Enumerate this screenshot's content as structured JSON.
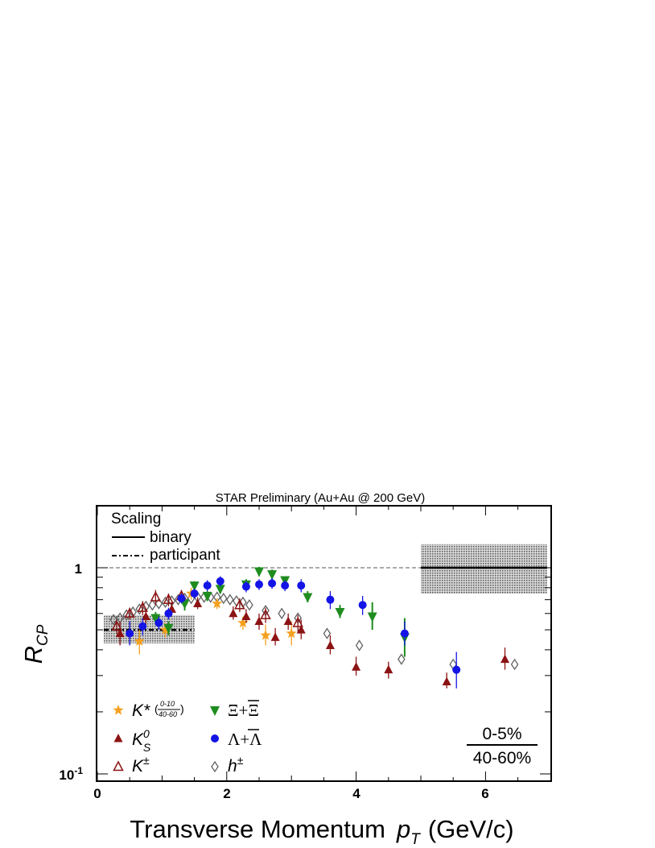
{
  "chart_data": {
    "type": "scatter",
    "title": "STAR Preliminary (Au+Au @ 200 GeV)",
    "xlabel": "Transverse Momentum",
    "xlabel_var": "p",
    "xlabel_sub": "T",
    "xlabel_unit": "(GeV/c)",
    "ylabel": "R",
    "ylabel_sub": "CP",
    "xlim": [
      -0.1,
      7.0
    ],
    "ylim": [
      0.088,
      1.9
    ],
    "y_scale": "log",
    "x_ticks": [
      "0",
      "2",
      "4",
      "6"
    ],
    "y_ticks": [
      {
        "base": "1",
        "exp": "",
        "value": 1
      },
      {
        "base": "10",
        "exp": "-1",
        "value": 0.1
      }
    ],
    "reference_line": {
      "y": 1,
      "style": "dashed"
    },
    "scaling_legend": {
      "title": "Scaling",
      "items": [
        {
          "label": "binary",
          "style": "solid"
        },
        {
          "label": "participant",
          "style": "dashdot"
        }
      ]
    },
    "ratio_label": {
      "numerator": "0-5%",
      "denominator": "40-60%"
    },
    "scaling_bands": [
      {
        "name": "participant",
        "x": [
          0.1,
          1.5
        ],
        "y_center": 0.5,
        "y_low": 0.43,
        "y_high": 0.59
      },
      {
        "name": "binary",
        "x": [
          5.0,
          6.95
        ],
        "y_center": 1.0,
        "y_low": 0.75,
        "y_high": 1.3
      }
    ],
    "series": [
      {
        "name": "K*",
        "legend_main": "K*",
        "legend_frac_top": "0-10",
        "legend_frac_bottom": "40-60",
        "marker": "star",
        "color": "#f5a01e",
        "points": [
          {
            "x": 0.65,
            "y": 0.44,
            "lo": 0.38,
            "hi": 0.5
          },
          {
            "x": 1.05,
            "y": 0.5,
            "lo": 0.46,
            "hi": 0.54
          },
          {
            "x": 1.45,
            "y": 0.75,
            "lo": 0.7,
            "hi": 0.8
          },
          {
            "x": 1.85,
            "y": 0.67,
            "lo": 0.63,
            "hi": 0.71
          },
          {
            "x": 2.25,
            "y": 0.54,
            "lo": 0.5,
            "hi": 0.58
          },
          {
            "x": 2.6,
            "y": 0.47,
            "lo": 0.42,
            "hi": 0.53
          },
          {
            "x": 3.0,
            "y": 0.48,
            "lo": 0.42,
            "hi": 0.55
          }
        ]
      },
      {
        "name": "K0S",
        "legend_main": "K",
        "legend_sup": "0",
        "legend_sub": "S",
        "marker": "triangle-up",
        "color": "#8b1313",
        "points": [
          {
            "x": 0.35,
            "y": 0.48,
            "lo": 0.42,
            "hi": 0.55
          },
          {
            "x": 0.75,
            "y": 0.58,
            "lo": 0.53,
            "hi": 0.63
          },
          {
            "x": 1.15,
            "y": 0.63,
            "lo": 0.59,
            "hi": 0.68
          },
          {
            "x": 1.55,
            "y": 0.67,
            "lo": 0.63,
            "hi": 0.72
          },
          {
            "x": 2.1,
            "y": 0.6,
            "lo": 0.56,
            "hi": 0.65
          },
          {
            "x": 2.3,
            "y": 0.58,
            "lo": 0.54,
            "hi": 0.63
          },
          {
            "x": 2.5,
            "y": 0.55,
            "lo": 0.5,
            "hi": 0.6
          },
          {
            "x": 2.75,
            "y": 0.46,
            "lo": 0.42,
            "hi": 0.51
          },
          {
            "x": 2.95,
            "y": 0.55,
            "lo": 0.5,
            "hi": 0.6
          },
          {
            "x": 3.15,
            "y": 0.5,
            "lo": 0.45,
            "hi": 0.56
          },
          {
            "x": 3.6,
            "y": 0.42,
            "lo": 0.38,
            "hi": 0.47
          },
          {
            "x": 4.0,
            "y": 0.33,
            "lo": 0.3,
            "hi": 0.37
          },
          {
            "x": 4.5,
            "y": 0.32,
            "lo": 0.29,
            "hi": 0.35
          },
          {
            "x": 5.4,
            "y": 0.28,
            "lo": 0.26,
            "hi": 0.31
          },
          {
            "x": 6.3,
            "y": 0.36,
            "lo": 0.32,
            "hi": 0.41
          }
        ]
      },
      {
        "name": "K±",
        "legend_main": "K",
        "legend_sup": "±",
        "marker": "triangle-up-open",
        "color": "#8b1313",
        "points": [
          {
            "x": 0.3,
            "y": 0.52,
            "lo": 0.48,
            "hi": 0.56
          },
          {
            "x": 0.5,
            "y": 0.6,
            "lo": 0.56,
            "hi": 0.64
          },
          {
            "x": 0.7,
            "y": 0.64,
            "lo": 0.59,
            "hi": 0.69
          },
          {
            "x": 0.9,
            "y": 0.72,
            "lo": 0.66,
            "hi": 0.78
          },
          {
            "x": 1.1,
            "y": 0.7,
            "lo": 0.65,
            "hi": 0.75
          },
          {
            "x": 1.3,
            "y": 0.73,
            "lo": 0.68,
            "hi": 0.78
          },
          {
            "x": 2.2,
            "y": 0.66,
            "lo": 0.61,
            "hi": 0.71
          },
          {
            "x": 2.6,
            "y": 0.59,
            "lo": 0.54,
            "hi": 0.64
          },
          {
            "x": 3.1,
            "y": 0.54,
            "lo": 0.49,
            "hi": 0.59
          }
        ]
      },
      {
        "name": "Ξ+Ξbar",
        "legend_main": "Ξ+Ξ",
        "marker": "triangle-down",
        "color": "#1f8c1f",
        "points": [
          {
            "x": 0.9,
            "y": 0.57,
            "lo": 0.53,
            "hi": 0.61
          },
          {
            "x": 1.1,
            "y": 0.51,
            "lo": 0.47,
            "hi": 0.55
          },
          {
            "x": 1.35,
            "y": 0.67,
            "lo": 0.62,
            "hi": 0.72
          },
          {
            "x": 1.5,
            "y": 0.82,
            "lo": 0.78,
            "hi": 0.86
          },
          {
            "x": 1.7,
            "y": 0.73,
            "lo": 0.69,
            "hi": 0.77
          },
          {
            "x": 1.9,
            "y": 0.79,
            "lo": 0.75,
            "hi": 0.83
          },
          {
            "x": 2.3,
            "y": 0.83,
            "lo": 0.79,
            "hi": 0.88
          },
          {
            "x": 2.5,
            "y": 0.96,
            "lo": 0.91,
            "hi": 1.01
          },
          {
            "x": 2.7,
            "y": 0.93,
            "lo": 0.88,
            "hi": 0.98
          },
          {
            "x": 2.9,
            "y": 0.87,
            "lo": 0.83,
            "hi": 0.91
          },
          {
            "x": 3.25,
            "y": 0.72,
            "lo": 0.68,
            "hi": 0.77
          },
          {
            "x": 3.75,
            "y": 0.61,
            "lo": 0.57,
            "hi": 0.66
          },
          {
            "x": 4.25,
            "y": 0.58,
            "lo": 0.5,
            "hi": 0.68
          },
          {
            "x": 4.75,
            "y": 0.46,
            "lo": 0.37,
            "hi": 0.57
          }
        ]
      },
      {
        "name": "Λ+Λbar",
        "legend_main": "Λ+Λ",
        "marker": "circle",
        "color": "#1414e6",
        "points": [
          {
            "x": 0.5,
            "y": 0.48,
            "lo": 0.42,
            "hi": 0.55
          },
          {
            "x": 0.7,
            "y": 0.52,
            "lo": 0.47,
            "hi": 0.57
          },
          {
            "x": 0.95,
            "y": 0.54,
            "lo": 0.5,
            "hi": 0.58
          },
          {
            "x": 1.1,
            "y": 0.6,
            "lo": 0.56,
            "hi": 0.64
          },
          {
            "x": 1.3,
            "y": 0.71,
            "lo": 0.67,
            "hi": 0.75
          },
          {
            "x": 1.5,
            "y": 0.75,
            "lo": 0.71,
            "hi": 0.79
          },
          {
            "x": 1.7,
            "y": 0.82,
            "lo": 0.77,
            "hi": 0.87
          },
          {
            "x": 1.9,
            "y": 0.86,
            "lo": 0.81,
            "hi": 0.91
          },
          {
            "x": 2.3,
            "y": 0.81,
            "lo": 0.76,
            "hi": 0.86
          },
          {
            "x": 2.5,
            "y": 0.83,
            "lo": 0.78,
            "hi": 0.88
          },
          {
            "x": 2.7,
            "y": 0.84,
            "lo": 0.79,
            "hi": 0.89
          },
          {
            "x": 2.9,
            "y": 0.82,
            "lo": 0.77,
            "hi": 0.87
          },
          {
            "x": 3.15,
            "y": 0.82,
            "lo": 0.76,
            "hi": 0.88
          },
          {
            "x": 3.6,
            "y": 0.7,
            "lo": 0.63,
            "hi": 0.77
          },
          {
            "x": 4.1,
            "y": 0.66,
            "lo": 0.59,
            "hi": 0.73
          },
          {
            "x": 4.75,
            "y": 0.48,
            "lo": 0.42,
            "hi": 0.55
          },
          {
            "x": 5.55,
            "y": 0.32,
            "lo": 0.26,
            "hi": 0.39
          }
        ]
      },
      {
        "name": "h±",
        "legend_main": "h",
        "legend_sup": "±",
        "marker": "diamond-open",
        "color": "#606060",
        "points": [
          {
            "x": 0.25,
            "y": 0.56
          },
          {
            "x": 0.35,
            "y": 0.57
          },
          {
            "x": 0.45,
            "y": 0.59
          },
          {
            "x": 0.55,
            "y": 0.61
          },
          {
            "x": 0.65,
            "y": 0.63
          },
          {
            "x": 0.75,
            "y": 0.65
          },
          {
            "x": 0.85,
            "y": 0.66
          },
          {
            "x": 0.95,
            "y": 0.67
          },
          {
            "x": 1.05,
            "y": 0.68
          },
          {
            "x": 1.15,
            "y": 0.69
          },
          {
            "x": 1.25,
            "y": 0.7
          },
          {
            "x": 1.35,
            "y": 0.71
          },
          {
            "x": 1.45,
            "y": 0.71
          },
          {
            "x": 1.55,
            "y": 0.72
          },
          {
            "x": 1.65,
            "y": 0.72
          },
          {
            "x": 1.75,
            "y": 0.72
          },
          {
            "x": 1.85,
            "y": 0.72
          },
          {
            "x": 1.95,
            "y": 0.71
          },
          {
            "x": 2.05,
            "y": 0.7
          },
          {
            "x": 2.15,
            "y": 0.69
          },
          {
            "x": 2.25,
            "y": 0.68
          },
          {
            "x": 2.35,
            "y": 0.66
          },
          {
            "x": 2.6,
            "y": 0.62
          },
          {
            "x": 2.85,
            "y": 0.6
          },
          {
            "x": 3.1,
            "y": 0.57
          },
          {
            "x": 3.55,
            "y": 0.48
          },
          {
            "x": 4.05,
            "y": 0.42
          },
          {
            "x": 4.7,
            "y": 0.36
          },
          {
            "x": 5.5,
            "y": 0.34
          },
          {
            "x": 6.45,
            "y": 0.34
          }
        ]
      }
    ]
  }
}
